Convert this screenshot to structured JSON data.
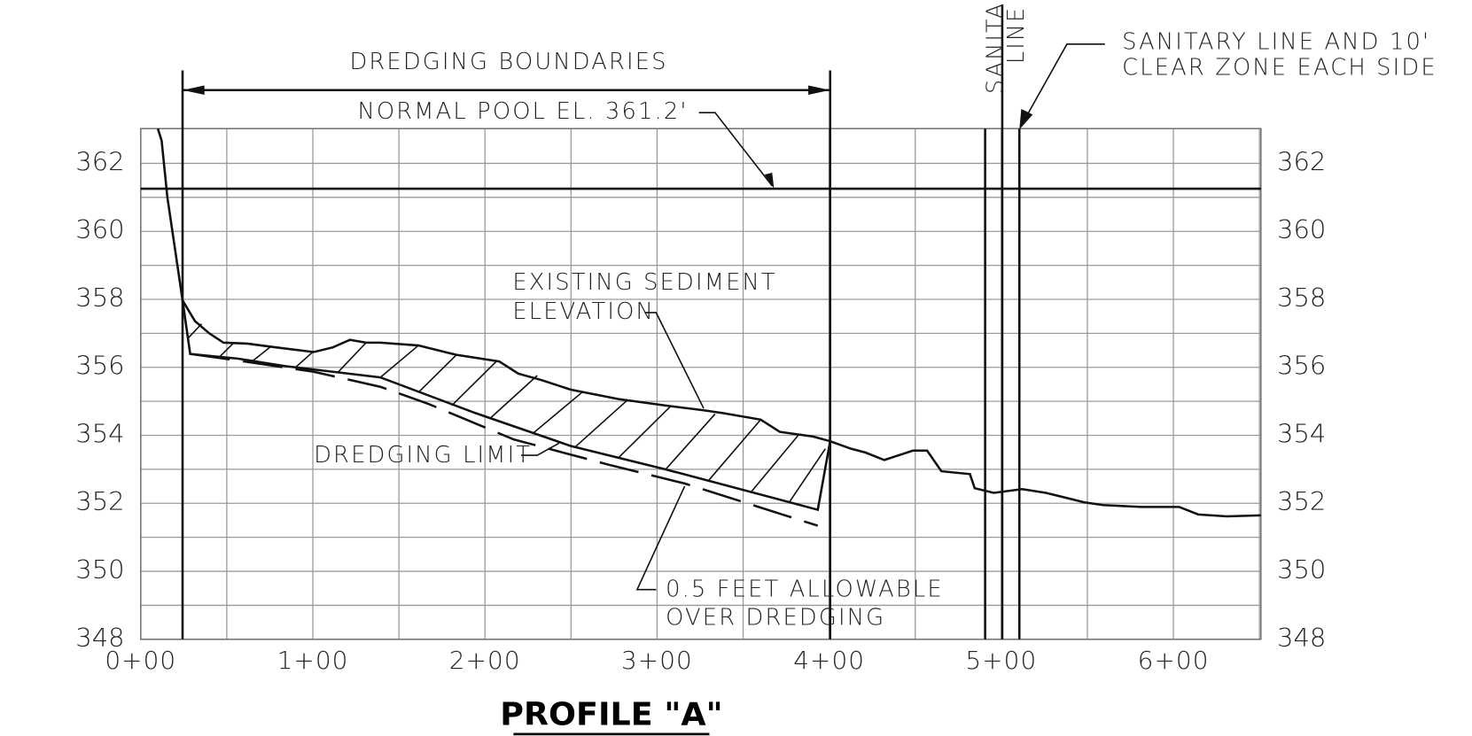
{
  "title": "PROFILE \"A\"",
  "y_labels": [
    "362",
    "360",
    "358",
    "356",
    "354",
    "352",
    "350",
    "348"
  ],
  "x_labels": [
    "0+00",
    "1+00",
    "2+00",
    "3+00",
    "4+00",
    "5+00",
    "6+00"
  ],
  "annotations": {
    "dredging_boundaries": "DREDGING BOUNDARIES",
    "normal_pool": "NORMAL POOL EL. 361.2'",
    "sanitary_vertical": [
      "SANITARY",
      "LINE"
    ],
    "sanitary_clear_zone": [
      "SANITARY LINE AND 10'",
      "CLEAR ZONE EACH SIDE"
    ],
    "existing_sediment": [
      "EXISTING SEDIMENT",
      "ELEVATION"
    ],
    "dredging_limit": "DREDGING LIMIT",
    "over_dredging": [
      "0.5 FEET ALLOWABLE",
      "OVER DREDGING"
    ]
  }
}
